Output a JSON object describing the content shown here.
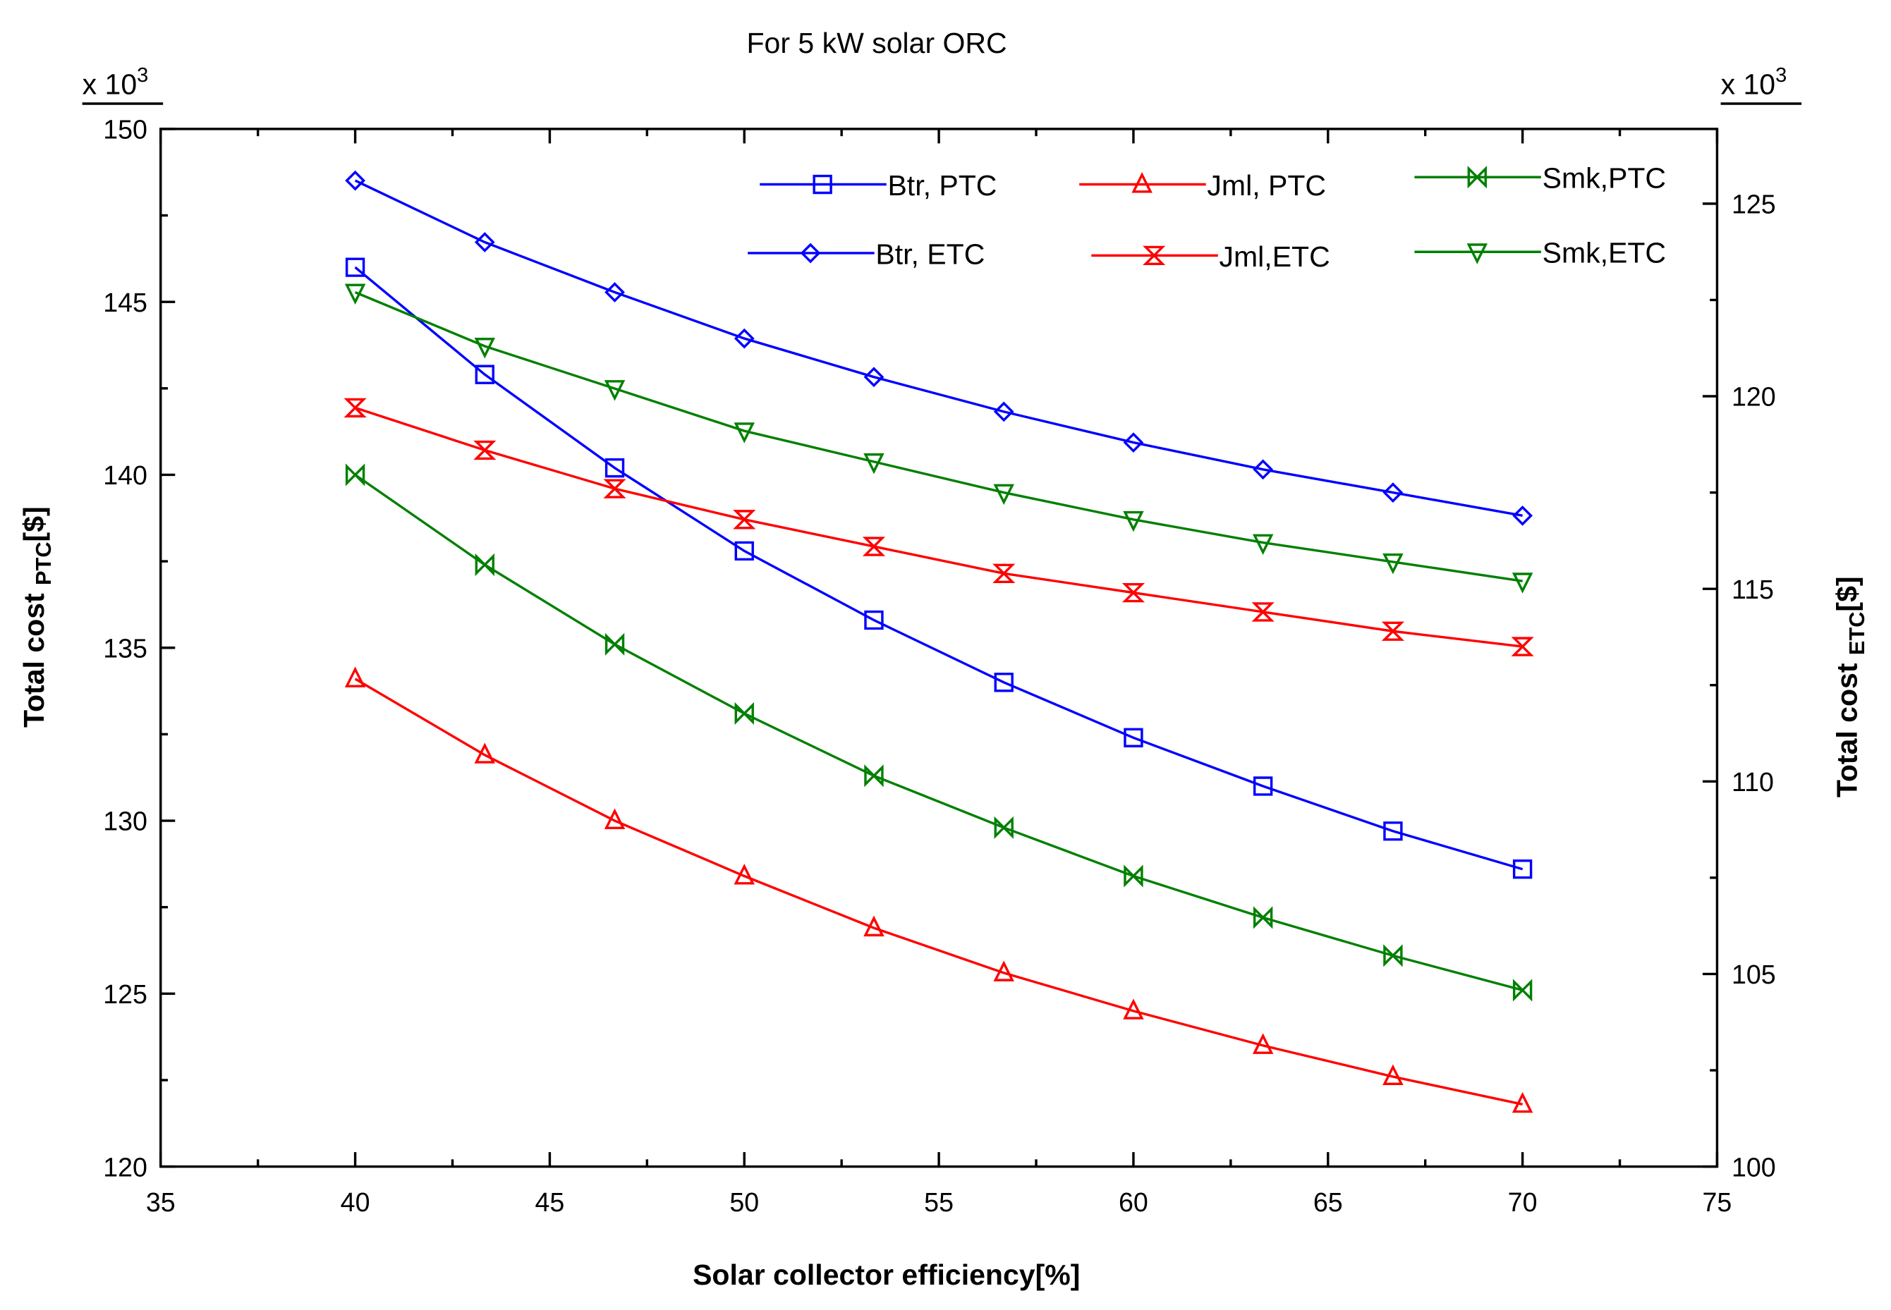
{
  "chart_data": {
    "type": "line",
    "title": "For 5 kW solar ORC",
    "xlabel": "Solar collector efficiency[%]",
    "ylabel_left": {
      "main": "Total cost ",
      "sub": "PTC",
      "tail": "[$]"
    },
    "ylabel_right": {
      "main": "Total cost ",
      "sub": "ETC",
      "tail": "[$]"
    },
    "y_multiplier_left": {
      "base": "x 10",
      "exp": "3"
    },
    "y_multiplier_right": {
      "base": "x 10",
      "exp": "3"
    },
    "xlim": [
      35,
      75
    ],
    "ylim_left": [
      120,
      150
    ],
    "ylim_right": [
      100,
      127
    ],
    "xticks": [
      35,
      40,
      45,
      50,
      55,
      60,
      65,
      70,
      75
    ],
    "yticks_left": [
      120,
      125,
      130,
      135,
      140,
      145,
      150
    ],
    "yticks_right": [
      100,
      105,
      110,
      115,
      120,
      125
    ],
    "grid": false,
    "legend_placement": "top-right",
    "x": [
      40,
      43.33,
      46.67,
      50,
      53.33,
      56.67,
      60,
      63.33,
      66.67,
      70
    ],
    "series": [
      {
        "name": "Btr, PTC",
        "axis": "left",
        "color": "#0000ff",
        "marker": "square",
        "values": [
          146.0,
          142.9,
          140.2,
          137.8,
          135.8,
          134.0,
          132.4,
          131.0,
          129.7,
          128.6
        ]
      },
      {
        "name": "Jml, PTC",
        "axis": "left",
        "color": "#ff0000",
        "marker": "triangle-up",
        "values": [
          134.1,
          131.9,
          130.0,
          128.4,
          126.9,
          125.6,
          124.5,
          123.5,
          122.6,
          121.8
        ]
      },
      {
        "name": "Smk,PTC",
        "axis": "left",
        "color": "#008000",
        "marker": "bowtie",
        "values": [
          140.0,
          137.4,
          135.1,
          133.1,
          131.3,
          129.8,
          128.4,
          127.2,
          126.1,
          125.1
        ]
      },
      {
        "name": "Btr, ETC",
        "axis": "right",
        "color": "#0000ff",
        "marker": "diamond",
        "values": [
          125.6,
          124.0,
          122.7,
          121.5,
          120.5,
          119.6,
          118.8,
          118.1,
          117.5,
          116.9
        ]
      },
      {
        "name": "Jml,ETC",
        "axis": "right",
        "color": "#ff0000",
        "marker": "hourglass",
        "values": [
          119.7,
          118.6,
          117.6,
          116.8,
          116.1,
          115.4,
          114.9,
          114.4,
          113.9,
          113.5
        ]
      },
      {
        "name": "Smk,ETC",
        "axis": "right",
        "color": "#008000",
        "marker": "triangle-down",
        "values": [
          122.7,
          121.3,
          120.2,
          119.1,
          118.3,
          117.5,
          116.8,
          116.2,
          115.7,
          115.2
        ]
      }
    ]
  }
}
